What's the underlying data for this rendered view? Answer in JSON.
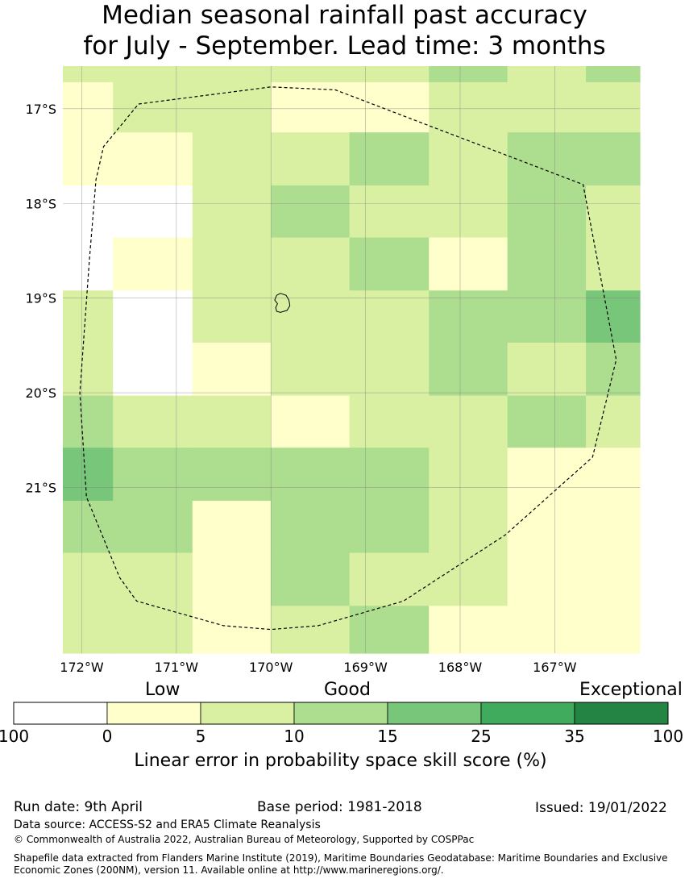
{
  "title": {
    "line1": "Median seasonal rainfall past accuracy",
    "line2": "for July - September. Lead time: 3 months"
  },
  "map": {
    "lon_range": [
      -172.2,
      -166.1
    ],
    "lat_range": [
      -16.55,
      -22.75
    ],
    "cell_edges_lon": [
      -172.2,
      -171.67,
      -170.83,
      -170.0,
      -169.17,
      -168.33,
      -167.5,
      -166.67,
      -166.1
    ],
    "cell_edges_lat": [
      -16.55,
      -16.72,
      -17.25,
      -17.81,
      -18.36,
      -18.92,
      -19.47,
      -20.03,
      -20.58,
      -21.14,
      -21.69,
      -22.25,
      -22.75
    ],
    "grid": [
      [
        2,
        2,
        2,
        2,
        2,
        3,
        2,
        3
      ],
      [
        1,
        2,
        2,
        1,
        1,
        2,
        2,
        2
      ],
      [
        1,
        1,
        2,
        2,
        3,
        2,
        3,
        3
      ],
      [
        0,
        0,
        2,
        3,
        2,
        2,
        3,
        2
      ],
      [
        0,
        1,
        2,
        2,
        3,
        1,
        3,
        2
      ],
      [
        2,
        0,
        2,
        2,
        2,
        3,
        3,
        4
      ],
      [
        2,
        0,
        1,
        2,
        2,
        3,
        2,
        3
      ],
      [
        3,
        2,
        2,
        1,
        2,
        2,
        3,
        2
      ],
      [
        4,
        3,
        3,
        3,
        3,
        2,
        1,
        1
      ],
      [
        3,
        3,
        1,
        3,
        3,
        2,
        1,
        1
      ],
      [
        2,
        2,
        1,
        3,
        2,
        2,
        1,
        1
      ],
      [
        2,
        2,
        1,
        2,
        3,
        1,
        1,
        1
      ]
    ],
    "lon_ticks": [
      {
        "value": -172,
        "label": "172°W"
      },
      {
        "value": -171,
        "label": "171°W"
      },
      {
        "value": -170,
        "label": "170°W"
      },
      {
        "value": -169,
        "label": "169°W"
      },
      {
        "value": -168,
        "label": "168°W"
      },
      {
        "value": -167,
        "label": "167°W"
      }
    ],
    "lat_ticks": [
      {
        "value": -17,
        "label": "17°S"
      },
      {
        "value": -18,
        "label": "18°S"
      },
      {
        "value": -19,
        "label": "19°S"
      },
      {
        "value": -20,
        "label": "20°S"
      },
      {
        "value": -21,
        "label": "21°S"
      }
    ],
    "eez_boundary": [
      [
        -171.4,
        -16.95
      ],
      [
        -170.0,
        -16.77
      ],
      [
        -169.32,
        -16.8
      ],
      [
        -166.7,
        -17.8
      ],
      [
        -166.35,
        -19.65
      ],
      [
        -166.6,
        -20.68
      ],
      [
        -167.52,
        -21.5
      ],
      [
        -168.6,
        -22.2
      ],
      [
        -169.5,
        -22.46
      ],
      [
        -170.0,
        -22.5
      ],
      [
        -170.5,
        -22.46
      ],
      [
        -171.42,
        -22.2
      ],
      [
        -171.6,
        -21.95
      ],
      [
        -171.95,
        -21.1
      ],
      [
        -172.02,
        -20.0
      ],
      [
        -171.92,
        -18.6
      ],
      [
        -171.85,
        -17.75
      ],
      [
        -171.77,
        -17.4
      ],
      [
        -171.4,
        -16.95
      ]
    ],
    "island_outline": [
      [
        -169.9,
        -18.95
      ],
      [
        -169.84,
        -18.97
      ],
      [
        -169.81,
        -19.02
      ],
      [
        -169.8,
        -19.08
      ],
      [
        -169.83,
        -19.13
      ],
      [
        -169.9,
        -19.15
      ],
      [
        -169.94,
        -19.14
      ],
      [
        -169.95,
        -19.1
      ],
      [
        -169.93,
        -19.06
      ],
      [
        -169.96,
        -19.02
      ],
      [
        -169.94,
        -18.97
      ],
      [
        -169.9,
        -18.95
      ]
    ]
  },
  "colorbar": {
    "colors": [
      "#ffffff",
      "#ffffcc",
      "#d9f0a3",
      "#addd8e",
      "#78c679",
      "#41ab5d",
      "#238443"
    ],
    "boundaries": [
      "100",
      "0",
      "5",
      "10",
      "15",
      "25",
      "35",
      "100"
    ],
    "categories": [
      "Low",
      "Good",
      "Exceptional"
    ],
    "label": "Linear error in probability space skill score (%)"
  },
  "footer": {
    "run_date": "Run date: 9th April",
    "base_period": "Base period: 1981-2018",
    "issued": "Issued: 19/01/2022",
    "data_source": "Data source: ACCESS-S2 and ERA5 Climate Reanalysis",
    "copyright": "© Commonwealth of Australia 2022, Australian Bureau of Meteorology, Supported by COSPPac",
    "shapefile_line1": "Shapefile data extracted from Flanders Marine Institute (2019), Maritime Boundaries Geodatabase: Maritime Boundaries and Exclusive",
    "shapefile_line2": "Economic Zones (200NM), version 11. Available online at http://www.marineregions.org/."
  }
}
